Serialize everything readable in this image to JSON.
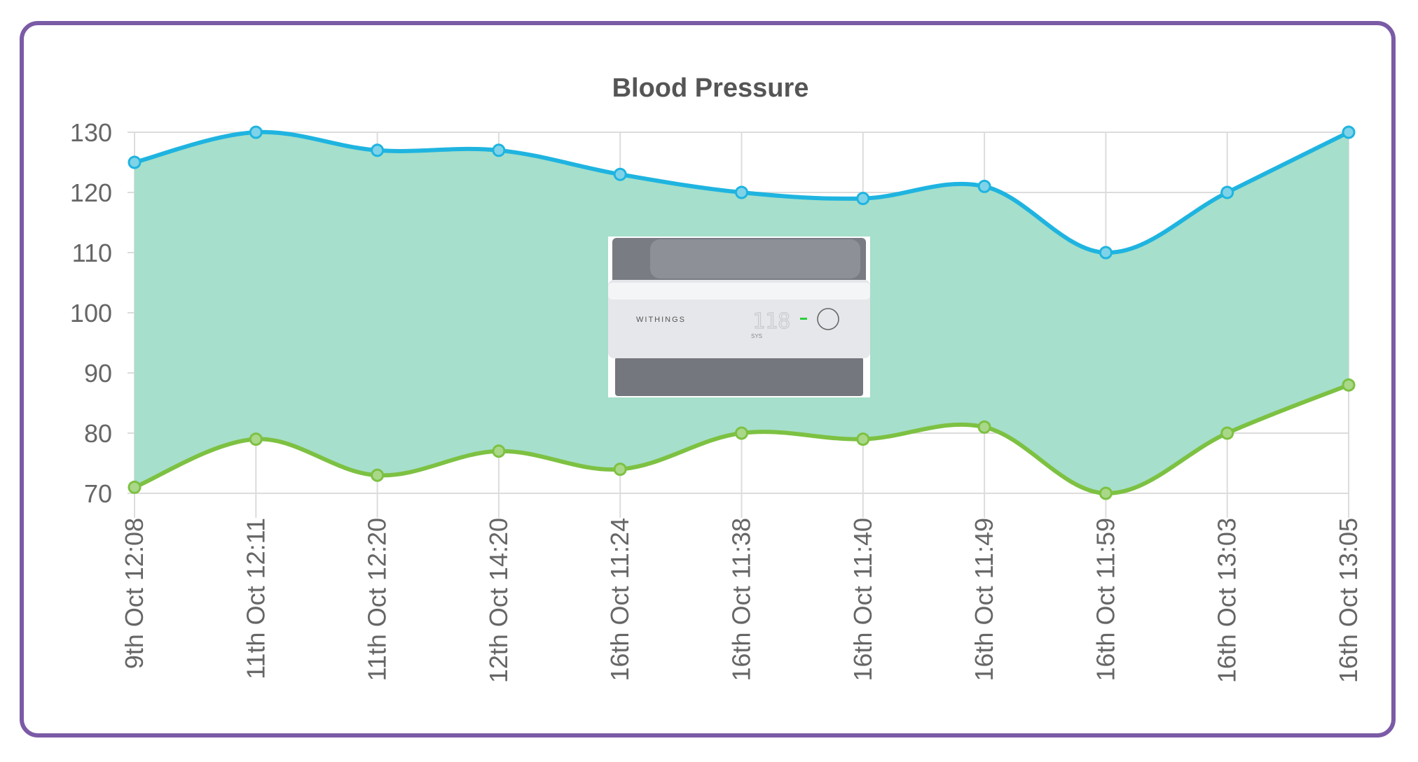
{
  "chart_data": {
    "type": "line",
    "title": "Blood Pressure",
    "categories": [
      "9th Oct 12:08",
      "11th Oct 12:11",
      "11th Oct 12:20",
      "12th Oct 14:20",
      "16th Oct 11:24",
      "16th Oct 11:38",
      "16th Oct 11:40",
      "16th Oct 11:49",
      "16th Oct 11:59",
      "16th Oct 13:03",
      "16th Oct 13:05"
    ],
    "series": [
      {
        "values": [
          125,
          130,
          127,
          127,
          123,
          120,
          119,
          121,
          110,
          120,
          130
        ],
        "color": "#1fb4e0"
      },
      {
        "values": [
          71,
          79,
          73,
          77,
          74,
          80,
          79,
          81,
          70,
          80,
          88
        ],
        "color": "#7dc142"
      }
    ],
    "fill_between_color": "#a6dfcb",
    "yticks": [
      70,
      80,
      90,
      100,
      110,
      120,
      130
    ],
    "ylim": [
      70,
      130
    ],
    "grid": true,
    "legend": "none"
  },
  "device_image": {
    "description_icon": "blood-pressure-monitor-image",
    "brand": "WITHINGS",
    "display_value": "118",
    "display_label": "SYS",
    "indicator_color": "#2ecc40"
  },
  "frame": {
    "border_color": "#7b5aa6"
  }
}
